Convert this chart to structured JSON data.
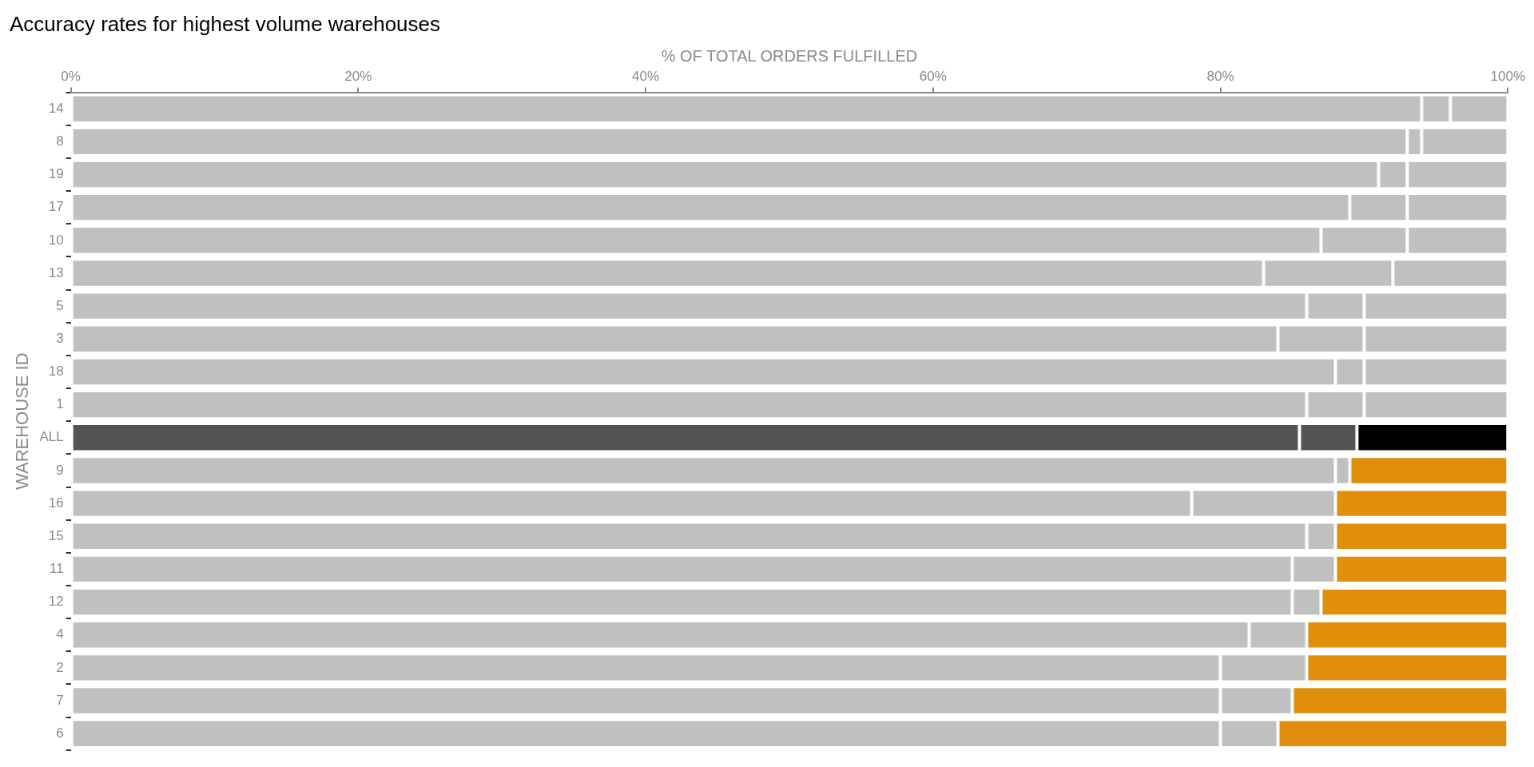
{
  "chart_data": {
    "type": "bar",
    "orientation": "horizontal",
    "stacked": true,
    "title": "Accuracy rates for highest volume warehouses",
    "xlabel": "% OF TOTAL ORDERS FULFILLED",
    "ylabel": "WAREHOUSE ID",
    "categories": [
      "14",
      "8",
      "19",
      "17",
      "10",
      "13",
      "5",
      "3",
      "18",
      "1",
      "ALL",
      "9",
      "16",
      "15",
      "11",
      "12",
      "4",
      "2",
      "7",
      "6"
    ],
    "series": [
      {
        "colors": [
          "#c0c0c0",
          "#c0c0c0",
          "#c0c0c0",
          "#c0c0c0",
          "#c0c0c0",
          "#c0c0c0",
          "#c0c0c0",
          "#c0c0c0",
          "#c0c0c0",
          "#c0c0c0",
          "#545454",
          "#c0c0c0",
          "#c0c0c0",
          "#c0c0c0",
          "#c0c0c0",
          "#c0c0c0",
          "#c0c0c0",
          "#c0c0c0",
          "#c0c0c0",
          "#c0c0c0"
        ],
        "values": [
          94,
          93,
          91,
          89,
          87,
          83,
          86,
          84,
          88,
          86,
          85.5,
          88,
          78,
          86,
          85,
          85,
          82,
          80,
          80,
          80
        ]
      },
      {
        "colors": [
          "#c0c0c0",
          "#c0c0c0",
          "#c0c0c0",
          "#c0c0c0",
          "#c0c0c0",
          "#c0c0c0",
          "#c0c0c0",
          "#c0c0c0",
          "#c0c0c0",
          "#c0c0c0",
          "#545454",
          "#c0c0c0",
          "#c0c0c0",
          "#c0c0c0",
          "#c0c0c0",
          "#c0c0c0",
          "#c0c0c0",
          "#c0c0c0",
          "#c0c0c0",
          "#c0c0c0"
        ],
        "values": [
          2,
          1,
          2,
          4,
          6,
          9,
          4,
          6,
          2,
          4,
          4,
          1,
          10,
          2,
          3,
          2,
          4,
          6,
          5,
          4
        ]
      },
      {
        "colors": [
          "#c0c0c0",
          "#c0c0c0",
          "#c0c0c0",
          "#c0c0c0",
          "#c0c0c0",
          "#c0c0c0",
          "#c0c0c0",
          "#c0c0c0",
          "#c0c0c0",
          "#c0c0c0",
          "#000000",
          "#e08e0b",
          "#e08e0b",
          "#e08e0b",
          "#e08e0b",
          "#e08e0b",
          "#e08e0b",
          "#e08e0b",
          "#e08e0b",
          "#e08e0b"
        ],
        "values": [
          4,
          6,
          7,
          7,
          7,
          8,
          10,
          10,
          10,
          10,
          10.5,
          11,
          12,
          12,
          12,
          13,
          14,
          14,
          15,
          16
        ]
      }
    ],
    "xlim": [
      0,
      100
    ],
    "xticks": [
      {
        "value": 0,
        "label": "0%"
      },
      {
        "value": 20,
        "label": "20%"
      },
      {
        "value": 40,
        "label": "40%"
      },
      {
        "value": 60,
        "label": "60%"
      },
      {
        "value": 80,
        "label": "80%"
      },
      {
        "value": 100,
        "label": "100%"
      }
    ],
    "grid": false,
    "legend": false
  }
}
